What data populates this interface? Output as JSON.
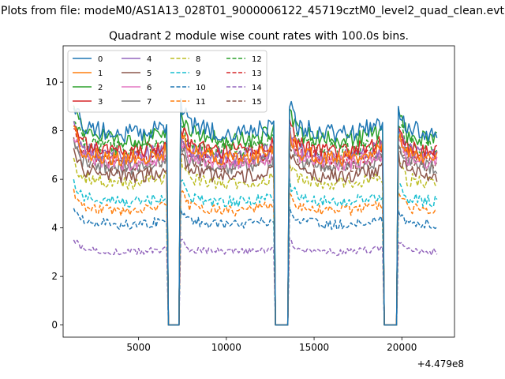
{
  "figure": {
    "suptitle": "Plots from file: modeM0/AS1A13_028T01_9000006122_45719cztM0_level2_quad_clean.evt"
  },
  "chart_data": {
    "type": "line",
    "title": "Quadrant 2 module wise count rates with 100.0s bins.",
    "xlabel": "",
    "ylabel": "",
    "x_offset_label": "+4.479e8",
    "xlim": [
      700,
      23000
    ],
    "ylim": [
      -0.5,
      11.5
    ],
    "xticks": [
      5000,
      10000,
      15000,
      20000
    ],
    "yticks": [
      0,
      2,
      4,
      6,
      8,
      10
    ],
    "grid": false,
    "legend_placement": "top-left",
    "legend_columns": 4,
    "bin_seconds": 100,
    "x_start": 1300,
    "x_end": 22000,
    "gaps": [
      [
        6600,
        7400
      ],
      [
        12700,
        13600
      ],
      [
        18900,
        19800
      ]
    ],
    "series": [
      {
        "name": "0",
        "color": "#1f77b4",
        "dashed": false,
        "level": 8.4
      },
      {
        "name": "1",
        "color": "#ff7f0e",
        "dashed": false,
        "level": 7.3
      },
      {
        "name": "2",
        "color": "#2ca02c",
        "dashed": false,
        "level": 8.1
      },
      {
        "name": "3",
        "color": "#d62728",
        "dashed": false,
        "level": 7.6
      },
      {
        "name": "4",
        "color": "#9467bd",
        "dashed": false,
        "level": 7.4
      },
      {
        "name": "5",
        "color": "#8c564b",
        "dashed": false,
        "level": 6.5
      },
      {
        "name": "6",
        "color": "#e377c2",
        "dashed": false,
        "level": 7.1
      },
      {
        "name": "7",
        "color": "#7f7f7f",
        "dashed": false,
        "level": 6.9
      },
      {
        "name": "8",
        "color": "#bcbd22",
        "dashed": true,
        "level": 6.2
      },
      {
        "name": "9",
        "color": "#17becf",
        "dashed": true,
        "level": 5.4
      },
      {
        "name": "10",
        "color": "#1f77b4",
        "dashed": true,
        "level": 4.4
      },
      {
        "name": "11",
        "color": "#ff7f0e",
        "dashed": true,
        "level": 5.0
      },
      {
        "name": "12",
        "color": "#2ca02c",
        "dashed": true,
        "level": 7.7
      },
      {
        "name": "13",
        "color": "#d62728",
        "dashed": true,
        "level": 7.3
      },
      {
        "name": "14",
        "color": "#9467bd",
        "dashed": true,
        "level": 3.2
      },
      {
        "name": "15",
        "color": "#8c564b",
        "dashed": true,
        "level": 7.0
      }
    ]
  }
}
